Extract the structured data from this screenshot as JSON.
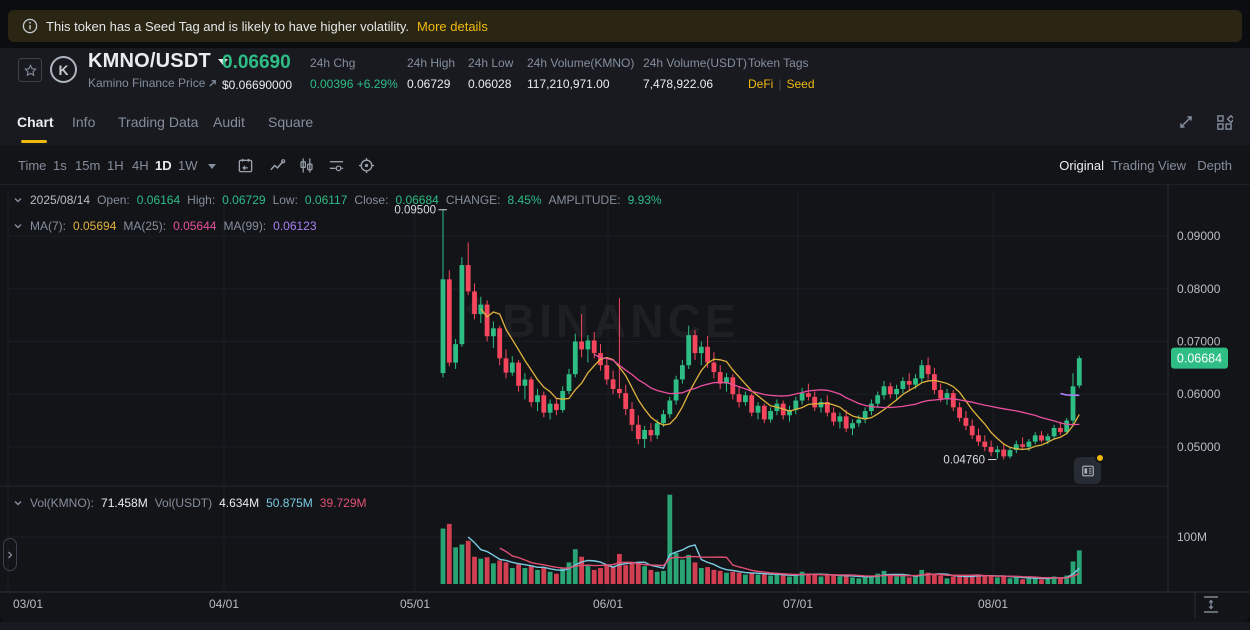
{
  "banner": {
    "message": "This token has a Seed Tag and is likely to have higher volatility.",
    "link_label": "More details"
  },
  "header": {
    "pair": "KMNO/USDT",
    "source": "Kamino Finance Price",
    "price": "0.06690",
    "price_usd": "$0.06690000",
    "stats": [
      {
        "label": "24h Chg",
        "value": "0.00396 +6.29%"
      },
      {
        "label": "24h High",
        "value": "0.06729"
      },
      {
        "label": "24h Low",
        "value": "0.06028"
      },
      {
        "label": "24h Volume(KMNO)",
        "value": "117,210,971.00"
      },
      {
        "label": "24h Volume(USDT)",
        "value": "7,478,922.06"
      }
    ],
    "token_tags": {
      "label": "Token Tags",
      "tags": [
        "DeFi",
        "Seed"
      ],
      "separator": "|"
    }
  },
  "tabs": {
    "items": [
      "Chart",
      "Info",
      "Trading Data",
      "Audit",
      "Square"
    ],
    "active": "Chart"
  },
  "toolbar": {
    "time_label": "Time",
    "intervals": [
      "1s",
      "15m",
      "1H",
      "4H",
      "1D",
      "1W"
    ],
    "active_interval": "1D",
    "view_modes": [
      "Original",
      "Trading View",
      "Depth"
    ],
    "active_view": "Original"
  },
  "ohlc": {
    "date": "2025/08/14",
    "items": [
      {
        "label": "Open:",
        "value": "0.06164"
      },
      {
        "label": "High:",
        "value": "0.06729"
      },
      {
        "label": "Low:",
        "value": "0.06117"
      },
      {
        "label": "Close:",
        "value": "0.06684"
      },
      {
        "label": "CHANGE:",
        "value": "8.45%"
      },
      {
        "label": "AMPLITUDE:",
        "value": "9.93%"
      }
    ]
  },
  "ma_row": {
    "items": [
      {
        "label": "MA(7):",
        "value": "0.05694"
      },
      {
        "label": "MA(25):",
        "value": "0.05644"
      },
      {
        "label": "MA(99):",
        "value": "0.06123"
      }
    ]
  },
  "vol_row": {
    "label1": "Vol(KMNO):",
    "value1": "71.458M",
    "label2": "Vol(USDT)",
    "value2": "4.634M",
    "ma_fast": "50.875M",
    "ma_slow": "39.729M"
  },
  "colors": {
    "accent": "#F0B90B",
    "up": "#2EBD85",
    "down": "#F6465D"
  },
  "chart_data": {
    "type": "candlestick",
    "interval": "1D",
    "start_date": "2025-05-05",
    "title": "KMNO/USDT daily candlestick chart",
    "watermark": "BINANCE",
    "price_axis": {
      "ticks": [
        "0.09000",
        "0.08000",
        "0.07000",
        "0.06000",
        "0.05000"
      ],
      "tick_prices": [
        0.09,
        0.08,
        0.07,
        0.06,
        0.05
      ]
    },
    "volume_axis": {
      "tick": "100M",
      "tick_value": 100
    },
    "x_axis": {
      "labels": [
        "03/01",
        "04/01",
        "05/01",
        "06/01",
        "07/01",
        "08/01"
      ]
    },
    "last_price": "0.06684",
    "last_price_value": 0.06684,
    "annotations": {
      "chart_high": "0.09500",
      "chart_high_value": 0.095,
      "chart_low": "0.04760",
      "chart_low_value": 0.0476
    },
    "overlays": {
      "ma7": "#E0B33C",
      "ma25": "#E8509E",
      "ma99": "#A97FF2",
      "vol_ma_fast": "#79CBE3",
      "vol_ma_slow": "#E04F74"
    },
    "colors": {
      "up": "#2EBD85",
      "down": "#F6465D"
    },
    "candles": [
      [
        0.064,
        0.095,
        0.0632,
        0.0818,
        118
      ],
      [
        0.0818,
        0.0835,
        0.0653,
        0.066,
        128
      ],
      [
        0.066,
        0.0705,
        0.0648,
        0.0695,
        78
      ],
      [
        0.0695,
        0.086,
        0.069,
        0.0845,
        84
      ],
      [
        0.0845,
        0.0888,
        0.0788,
        0.0795,
        92
      ],
      [
        0.0795,
        0.081,
        0.0742,
        0.0752,
        58
      ],
      [
        0.0752,
        0.0785,
        0.0735,
        0.077,
        54
      ],
      [
        0.077,
        0.0778,
        0.07,
        0.071,
        57
      ],
      [
        0.071,
        0.0738,
        0.0688,
        0.0725,
        44
      ],
      [
        0.0725,
        0.073,
        0.0655,
        0.0668,
        50
      ],
      [
        0.0668,
        0.0685,
        0.063,
        0.0641,
        46
      ],
      [
        0.0641,
        0.0672,
        0.0635,
        0.066,
        34
      ],
      [
        0.066,
        0.0665,
        0.0605,
        0.0616,
        42
      ],
      [
        0.0616,
        0.064,
        0.059,
        0.0628,
        34
      ],
      [
        0.0628,
        0.0633,
        0.0576,
        0.0585,
        38
      ],
      [
        0.0585,
        0.061,
        0.0568,
        0.0598,
        30
      ],
      [
        0.0598,
        0.0605,
        0.0556,
        0.0565,
        34
      ],
      [
        0.0565,
        0.059,
        0.0552,
        0.0582,
        26
      ],
      [
        0.0582,
        0.0592,
        0.056,
        0.057,
        22
      ],
      [
        0.057,
        0.0615,
        0.0565,
        0.0606,
        34
      ],
      [
        0.0606,
        0.0648,
        0.06,
        0.0638,
        46
      ],
      [
        0.0638,
        0.0715,
        0.0632,
        0.07,
        74
      ],
      [
        0.07,
        0.0752,
        0.067,
        0.0685,
        58
      ],
      [
        0.0685,
        0.0712,
        0.066,
        0.0702,
        38
      ],
      [
        0.0702,
        0.0718,
        0.0668,
        0.0678,
        30
      ],
      [
        0.0678,
        0.0695,
        0.0645,
        0.0655,
        34
      ],
      [
        0.0655,
        0.0668,
        0.0618,
        0.0628,
        42
      ],
      [
        0.0628,
        0.0645,
        0.06,
        0.061,
        36
      ],
      [
        0.061,
        0.0782,
        0.0592,
        0.0602,
        64
      ],
      [
        0.0602,
        0.0618,
        0.056,
        0.0572,
        40
      ],
      [
        0.0572,
        0.0585,
        0.053,
        0.0542,
        44
      ],
      [
        0.0542,
        0.056,
        0.0505,
        0.0515,
        46
      ],
      [
        0.0515,
        0.054,
        0.0498,
        0.0532,
        38
      ],
      [
        0.0532,
        0.0545,
        0.051,
        0.0522,
        30
      ],
      [
        0.0522,
        0.0552,
        0.0515,
        0.0545,
        26
      ],
      [
        0.0545,
        0.057,
        0.0538,
        0.0562,
        28
      ],
      [
        0.0562,
        0.0595,
        0.0555,
        0.0588,
        190
      ],
      [
        0.0588,
        0.0635,
        0.058,
        0.0628,
        66
      ],
      [
        0.0628,
        0.0665,
        0.062,
        0.0655,
        52
      ],
      [
        0.0655,
        0.073,
        0.0648,
        0.0712,
        62
      ],
      [
        0.0712,
        0.0722,
        0.0665,
        0.0678,
        46
      ],
      [
        0.0678,
        0.07,
        0.0655,
        0.069,
        34
      ],
      [
        0.069,
        0.071,
        0.065,
        0.066,
        36
      ],
      [
        0.066,
        0.068,
        0.063,
        0.0642,
        30
      ],
      [
        0.0642,
        0.0655,
        0.061,
        0.062,
        28
      ],
      [
        0.062,
        0.064,
        0.0605,
        0.0632,
        24
      ],
      [
        0.0632,
        0.0638,
        0.059,
        0.06,
        26
      ],
      [
        0.06,
        0.0615,
        0.0575,
        0.0585,
        24
      ],
      [
        0.0585,
        0.0605,
        0.0578,
        0.0598,
        20
      ],
      [
        0.0598,
        0.0602,
        0.0558,
        0.0565,
        24
      ],
      [
        0.0565,
        0.0585,
        0.0552,
        0.0578,
        20
      ],
      [
        0.0578,
        0.0582,
        0.0545,
        0.0552,
        22
      ],
      [
        0.0552,
        0.0575,
        0.0546,
        0.0568,
        18
      ],
      [
        0.0568,
        0.059,
        0.056,
        0.0582,
        20
      ],
      [
        0.0582,
        0.0588,
        0.0552,
        0.056,
        18
      ],
      [
        0.056,
        0.0578,
        0.0548,
        0.057,
        16
      ],
      [
        0.057,
        0.0595,
        0.0562,
        0.0588,
        20
      ],
      [
        0.0588,
        0.0612,
        0.058,
        0.0602,
        26
      ],
      [
        0.0602,
        0.062,
        0.0588,
        0.0595,
        22
      ],
      [
        0.0595,
        0.0605,
        0.0568,
        0.0575,
        20
      ],
      [
        0.0575,
        0.0592,
        0.0565,
        0.0585,
        16
      ],
      [
        0.0585,
        0.0598,
        0.0558,
        0.0565,
        18
      ],
      [
        0.0565,
        0.0575,
        0.054,
        0.0548,
        20
      ],
      [
        0.0548,
        0.0565,
        0.0535,
        0.0558,
        16
      ],
      [
        0.0558,
        0.057,
        0.0528,
        0.0535,
        18
      ],
      [
        0.0535,
        0.0552,
        0.0522,
        0.0545,
        14
      ],
      [
        0.0545,
        0.056,
        0.0538,
        0.0552,
        12
      ],
      [
        0.0552,
        0.0575,
        0.0545,
        0.0568,
        16
      ],
      [
        0.0568,
        0.059,
        0.056,
        0.0582,
        18
      ],
      [
        0.0582,
        0.0605,
        0.0575,
        0.0598,
        22
      ],
      [
        0.0598,
        0.0625,
        0.059,
        0.0615,
        28
      ],
      [
        0.0615,
        0.0622,
        0.0592,
        0.06,
        18
      ],
      [
        0.06,
        0.0618,
        0.0588,
        0.061,
        16
      ],
      [
        0.061,
        0.0632,
        0.0602,
        0.0625,
        18
      ],
      [
        0.0625,
        0.064,
        0.0608,
        0.0618,
        14
      ],
      [
        0.0618,
        0.0638,
        0.061,
        0.063,
        16
      ],
      [
        0.063,
        0.0665,
        0.0622,
        0.0655,
        30
      ],
      [
        0.0655,
        0.067,
        0.0628,
        0.0638,
        24
      ],
      [
        0.0638,
        0.065,
        0.06,
        0.0608,
        20
      ],
      [
        0.0608,
        0.062,
        0.0585,
        0.0592,
        18
      ],
      [
        0.0592,
        0.061,
        0.058,
        0.0602,
        12
      ],
      [
        0.0602,
        0.0608,
        0.0568,
        0.0575,
        16
      ],
      [
        0.0575,
        0.0585,
        0.0548,
        0.0555,
        18
      ],
      [
        0.0555,
        0.0568,
        0.0532,
        0.054,
        16
      ],
      [
        0.054,
        0.0552,
        0.0515,
        0.0522,
        18
      ],
      [
        0.0522,
        0.0535,
        0.0502,
        0.051,
        20
      ],
      [
        0.051,
        0.0522,
        0.0492,
        0.05,
        16
      ],
      [
        0.05,
        0.0512,
        0.0482,
        0.049,
        18
      ],
      [
        0.049,
        0.0502,
        0.0478,
        0.0495,
        14
      ],
      [
        0.0495,
        0.0505,
        0.0476,
        0.0482,
        18
      ],
      [
        0.0482,
        0.05,
        0.0478,
        0.0494,
        12
      ],
      [
        0.0494,
        0.0512,
        0.0488,
        0.0505,
        14
      ],
      [
        0.0505,
        0.0518,
        0.0495,
        0.05,
        10
      ],
      [
        0.05,
        0.0515,
        0.0492,
        0.051,
        12
      ],
      [
        0.051,
        0.0528,
        0.0505,
        0.0522,
        14
      ],
      [
        0.0522,
        0.053,
        0.0508,
        0.0512,
        10
      ],
      [
        0.0512,
        0.0525,
        0.0505,
        0.052,
        12
      ],
      [
        0.052,
        0.0542,
        0.0515,
        0.0536,
        16
      ],
      [
        0.0536,
        0.0548,
        0.0522,
        0.0528,
        12
      ],
      [
        0.0528,
        0.0555,
        0.0524,
        0.055,
        18
      ],
      [
        0.055,
        0.064,
        0.0542,
        0.0615,
        48
      ],
      [
        0.06164,
        0.06729,
        0.06117,
        0.06684,
        71.5
      ]
    ]
  }
}
